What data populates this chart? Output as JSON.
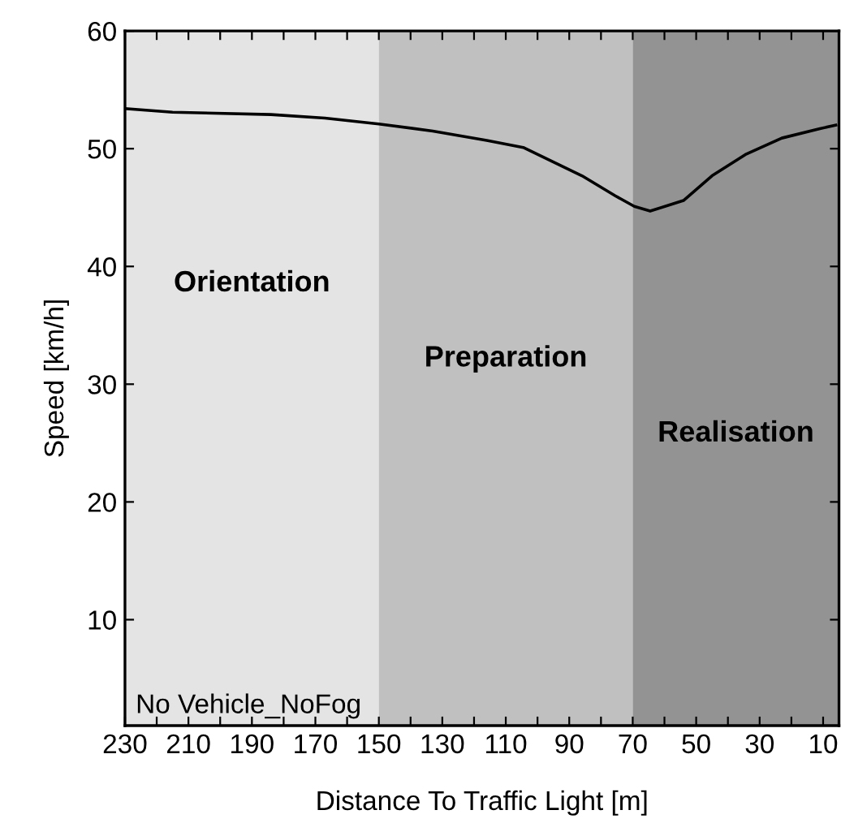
{
  "chart_data": {
    "type": "line",
    "xlabel": "Distance To Traffic Light [m]",
    "ylabel": "Speed [km/h]",
    "x": [
      230,
      215,
      184,
      167,
      150,
      133,
      116,
      104.5,
      86,
      75.5,
      69.5,
      64.5,
      54,
      45,
      34.5,
      23,
      11,
      6
    ],
    "series": [
      {
        "color": "#000000",
        "values": [
          53.4,
          53.1,
          52.9,
          52.6,
          52.1,
          51.5,
          50.7,
          50.1,
          47.7,
          46.0,
          45.1,
          44.7,
          45.6,
          47.7,
          49.5,
          50.9,
          51.7,
          52.0
        ]
      }
    ],
    "xlim": [
      230,
      5
    ],
    "ylim": [
      1,
      60
    ],
    "xticks": [
      230,
      {
        "value": 220,
        "label": null
      },
      210,
      {
        "value": 200,
        "label": null
      },
      190,
      {
        "value": 180,
        "label": null
      },
      170,
      {
        "value": 160,
        "label": null
      },
      150,
      {
        "value": 140,
        "label": null
      },
      130,
      {
        "value": 120,
        "label": null
      },
      110,
      {
        "value": 100,
        "label": null
      },
      90,
      {
        "value": 80,
        "label": null
      },
      70,
      {
        "value": 60,
        "label": null
      },
      50,
      {
        "value": 40,
        "label": null
      },
      30,
      {
        "value": 20,
        "label": null
      },
      10
    ],
    "yticks": [
      10,
      20,
      30,
      40,
      50,
      60
    ],
    "bands": [
      {
        "axis": "x",
        "from": 230,
        "to": 150,
        "label": "Orientation",
        "color": "#e4e4e4"
      },
      {
        "axis": "x",
        "from": 150,
        "to": 70,
        "label": "Preparation",
        "color": "#c0c0c0"
      },
      {
        "axis": "x",
        "from": 70,
        "to": 5,
        "label": "Realisation",
        "color": "#939393"
      }
    ],
    "annotations": [
      "No Vehicle_NoFog"
    ],
    "grid": false,
    "legend": false,
    "marker": "none",
    "line_style": "solid"
  }
}
